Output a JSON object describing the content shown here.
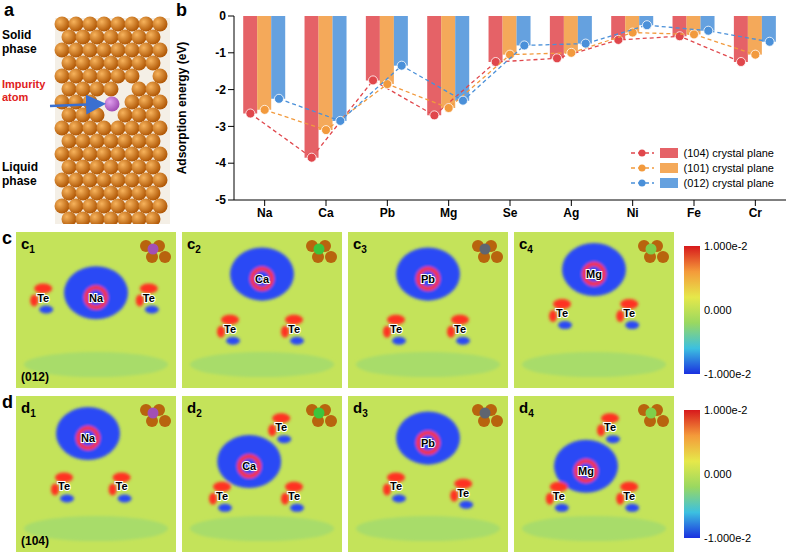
{
  "chart_data": {
    "type": "bar",
    "ylabel": "Adsorption energy (eV)",
    "categories": [
      "Na",
      "Ca",
      "Pb",
      "Mg",
      "Se",
      "Ag",
      "Ni",
      "Fe",
      "Cr"
    ],
    "series": [
      {
        "name": "(104) crystal plane",
        "color": "#e0474c",
        "values": [
          -2.65,
          -3.85,
          -1.75,
          -2.7,
          -1.25,
          -1.15,
          -0.65,
          -0.55,
          -1.25
        ]
      },
      {
        "name": "(101) crystal plane",
        "color": "#f29a3d",
        "values": [
          -2.55,
          -3.1,
          -1.85,
          -2.5,
          -1.05,
          -1.0,
          -0.45,
          -0.5,
          -1.05
        ]
      },
      {
        "name": "(012) crystal plane",
        "color": "#4a90d9",
        "values": [
          -2.25,
          -2.85,
          -1.35,
          -2.3,
          -0.8,
          -0.75,
          -0.25,
          -0.4,
          -0.7
        ]
      }
    ],
    "ylim": [
      -5,
      0
    ],
    "yticks": [
      -5,
      -4,
      -3,
      -2,
      -1,
      0
    ],
    "legend": "lower right",
    "marker": "circle",
    "line_style": "dashed"
  },
  "figure": {
    "panel_a": {
      "letter": "a",
      "solid": "Solid phase",
      "impurity": "Impurity atom",
      "liquid": "Liquid phase",
      "impurity_color": "#a24fb5"
    },
    "panel_b": {
      "letter": "b"
    },
    "maps": [
      {
        "letter": "c",
        "plane": "(012)",
        "items": [
          {
            "sub": "1",
            "atoms": [
              "Te",
              "Na",
              "Te"
            ],
            "color": "#a24fb5"
          },
          {
            "sub": "2",
            "atoms": [
              "Ca",
              "Te",
              "Te"
            ],
            "color": "#3cc43c"
          },
          {
            "sub": "3",
            "atoms": [
              "Pb",
              "Te",
              "Te"
            ],
            "color": "#5f6570"
          },
          {
            "sub": "4",
            "atoms": [
              "Mg",
              "Te",
              "Te"
            ],
            "color": "#7fcf4a"
          }
        ]
      },
      {
        "letter": "d",
        "plane": "(104)",
        "items": [
          {
            "sub": "1",
            "atoms": [
              "Na",
              "Te",
              "Te"
            ],
            "color": "#a24fb5"
          },
          {
            "sub": "2",
            "atoms": [
              "Te",
              "Ca",
              "Te",
              "Te"
            ],
            "color": "#3cc43c"
          },
          {
            "sub": "3",
            "atoms": [
              "Pb",
              "Te",
              "Te"
            ],
            "color": "#5f6570"
          },
          {
            "sub": "4",
            "atoms": [
              "Te",
              "Mg",
              "Te",
              "Te"
            ],
            "color": "#7fcf4a"
          }
        ]
      }
    ],
    "colorbar": {
      "range": [
        -0.01,
        0.01
      ],
      "ticks": [
        {
          "value": 0.01,
          "label": "1.000e-2"
        },
        {
          "value": 0,
          "label": "0.000"
        },
        {
          "value": -0.01,
          "label": "-1.000e-2"
        }
      ]
    }
  }
}
